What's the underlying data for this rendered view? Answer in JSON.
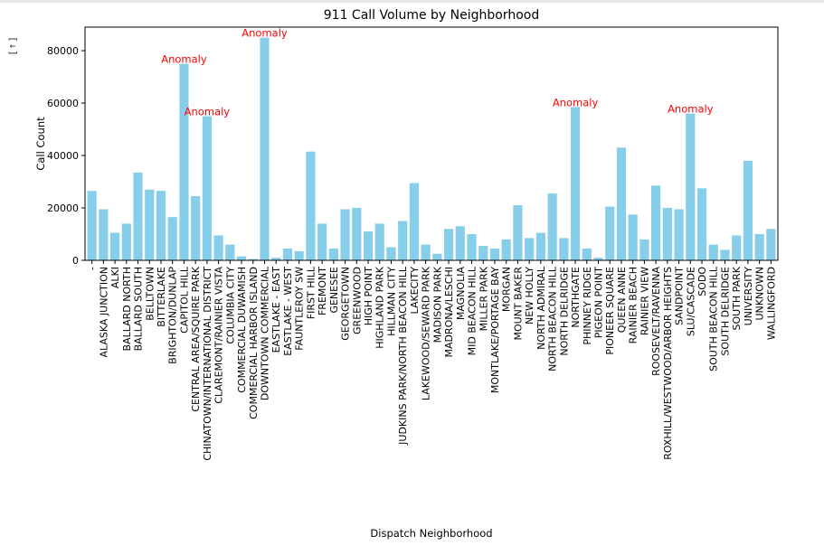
{
  "notebook": {
    "toolbar_glyph": "[↓]"
  },
  "chart_data": {
    "type": "bar",
    "title": "911 Call Volume by Neighborhood",
    "xlabel": "Dispatch Neighborhood",
    "ylabel": "Call Count",
    "ylim": [
      0,
      89000
    ],
    "yticks": [
      0,
      20000,
      40000,
      60000,
      80000
    ],
    "grid": false,
    "bar_color": "#87ceeb",
    "annotation_color": "#ff0000",
    "categories": [
      "-",
      "ALASKA JUNCTION",
      "ALKI",
      "BALLARD NORTH",
      "BALLARD SOUTH",
      "BELLTOWN",
      "BITTERLAKE",
      "BRIGHTON/DUNLAP",
      "CAPITOL HILL",
      "CENTRAL AREA/SQUIRE PARK",
      "CHINATOWN/INTERNATIONAL DISTRICT",
      "CLAREMONT/RAINIER VISTA",
      "COLUMBIA CITY",
      "COMMERCIAL DUWAMISH",
      "COMMERCIAL HARBOR ISLAND",
      "DOWNTOWN COMMERCIAL",
      "EASTLAKE - EAST",
      "EASTLAKE - WEST",
      "FAUNTLEROY SW",
      "FIRST HILL",
      "FREMONT",
      "GENESEE",
      "GEORGETOWN",
      "GREENWOOD",
      "HIGH POINT",
      "HIGHLAND PARK",
      "HILLMAN CITY",
      "JUDKINS PARK/NORTH BEACON HILL",
      "LAKECITY",
      "LAKEWOOD/SEWARD PARK",
      "MADISON PARK",
      "MADRONA/LESCHI",
      "MAGNOLIA",
      "MID BEACON HILL",
      "MILLER PARK",
      "MONTLAKE/PORTAGE BAY",
      "MORGAN",
      "MOUNT BAKER",
      "NEW HOLLY",
      "NORTH ADMIRAL",
      "NORTH BEACON HILL",
      "NORTH DELRIDGE",
      "NORTHGATE",
      "PHINNEY RIDGE",
      "PIGEON POINT",
      "PIONEER SQUARE",
      "QUEEN ANNE",
      "RAINIER BEACH",
      "RAINIER VIEW",
      "ROOSEVELT/RAVENNA",
      "ROXHILL/WESTWOOD/ARBOR HEIGHTS",
      "SANDPOINT",
      "SLU/CASCADE",
      "SODO",
      "SOUTH BEACON HILL",
      "SOUTH DELRIDGE",
      "SOUTH PARK",
      "UNIVERSITY",
      "UNKNOWN",
      "WALLINGFORD"
    ],
    "values": [
      26500,
      19500,
      10500,
      14000,
      33500,
      27000,
      26500,
      16500,
      75000,
      24500,
      55000,
      9500,
      6000,
      1500,
      500,
      85000,
      1000,
      4500,
      3500,
      41500,
      14000,
      4500,
      19500,
      20000,
      11000,
      14000,
      5000,
      15000,
      29500,
      6000,
      2500,
      12000,
      13000,
      10000,
      5500,
      4500,
      8000,
      21000,
      8500,
      10500,
      25500,
      8500,
      58500,
      4500,
      1000,
      20500,
      43000,
      17500,
      8000,
      28500,
      20000,
      19500,
      56000,
      27500,
      6000,
      4000,
      9500,
      38000,
      10000,
      12000
    ],
    "annotations": [
      {
        "text": "Anomaly",
        "category": "CAPITOL HILL",
        "value": 75000
      },
      {
        "text": "Anomaly",
        "category": "CHINATOWN/INTERNATIONAL DISTRICT",
        "value": 55000
      },
      {
        "text": "Anomaly",
        "category": "DOWNTOWN COMMERCIAL",
        "value": 85000
      },
      {
        "text": "Anomaly",
        "category": "NORTHGATE",
        "value": 58500
      },
      {
        "text": "Anomaly",
        "category": "SLU/CASCADE",
        "value": 56000
      }
    ]
  }
}
